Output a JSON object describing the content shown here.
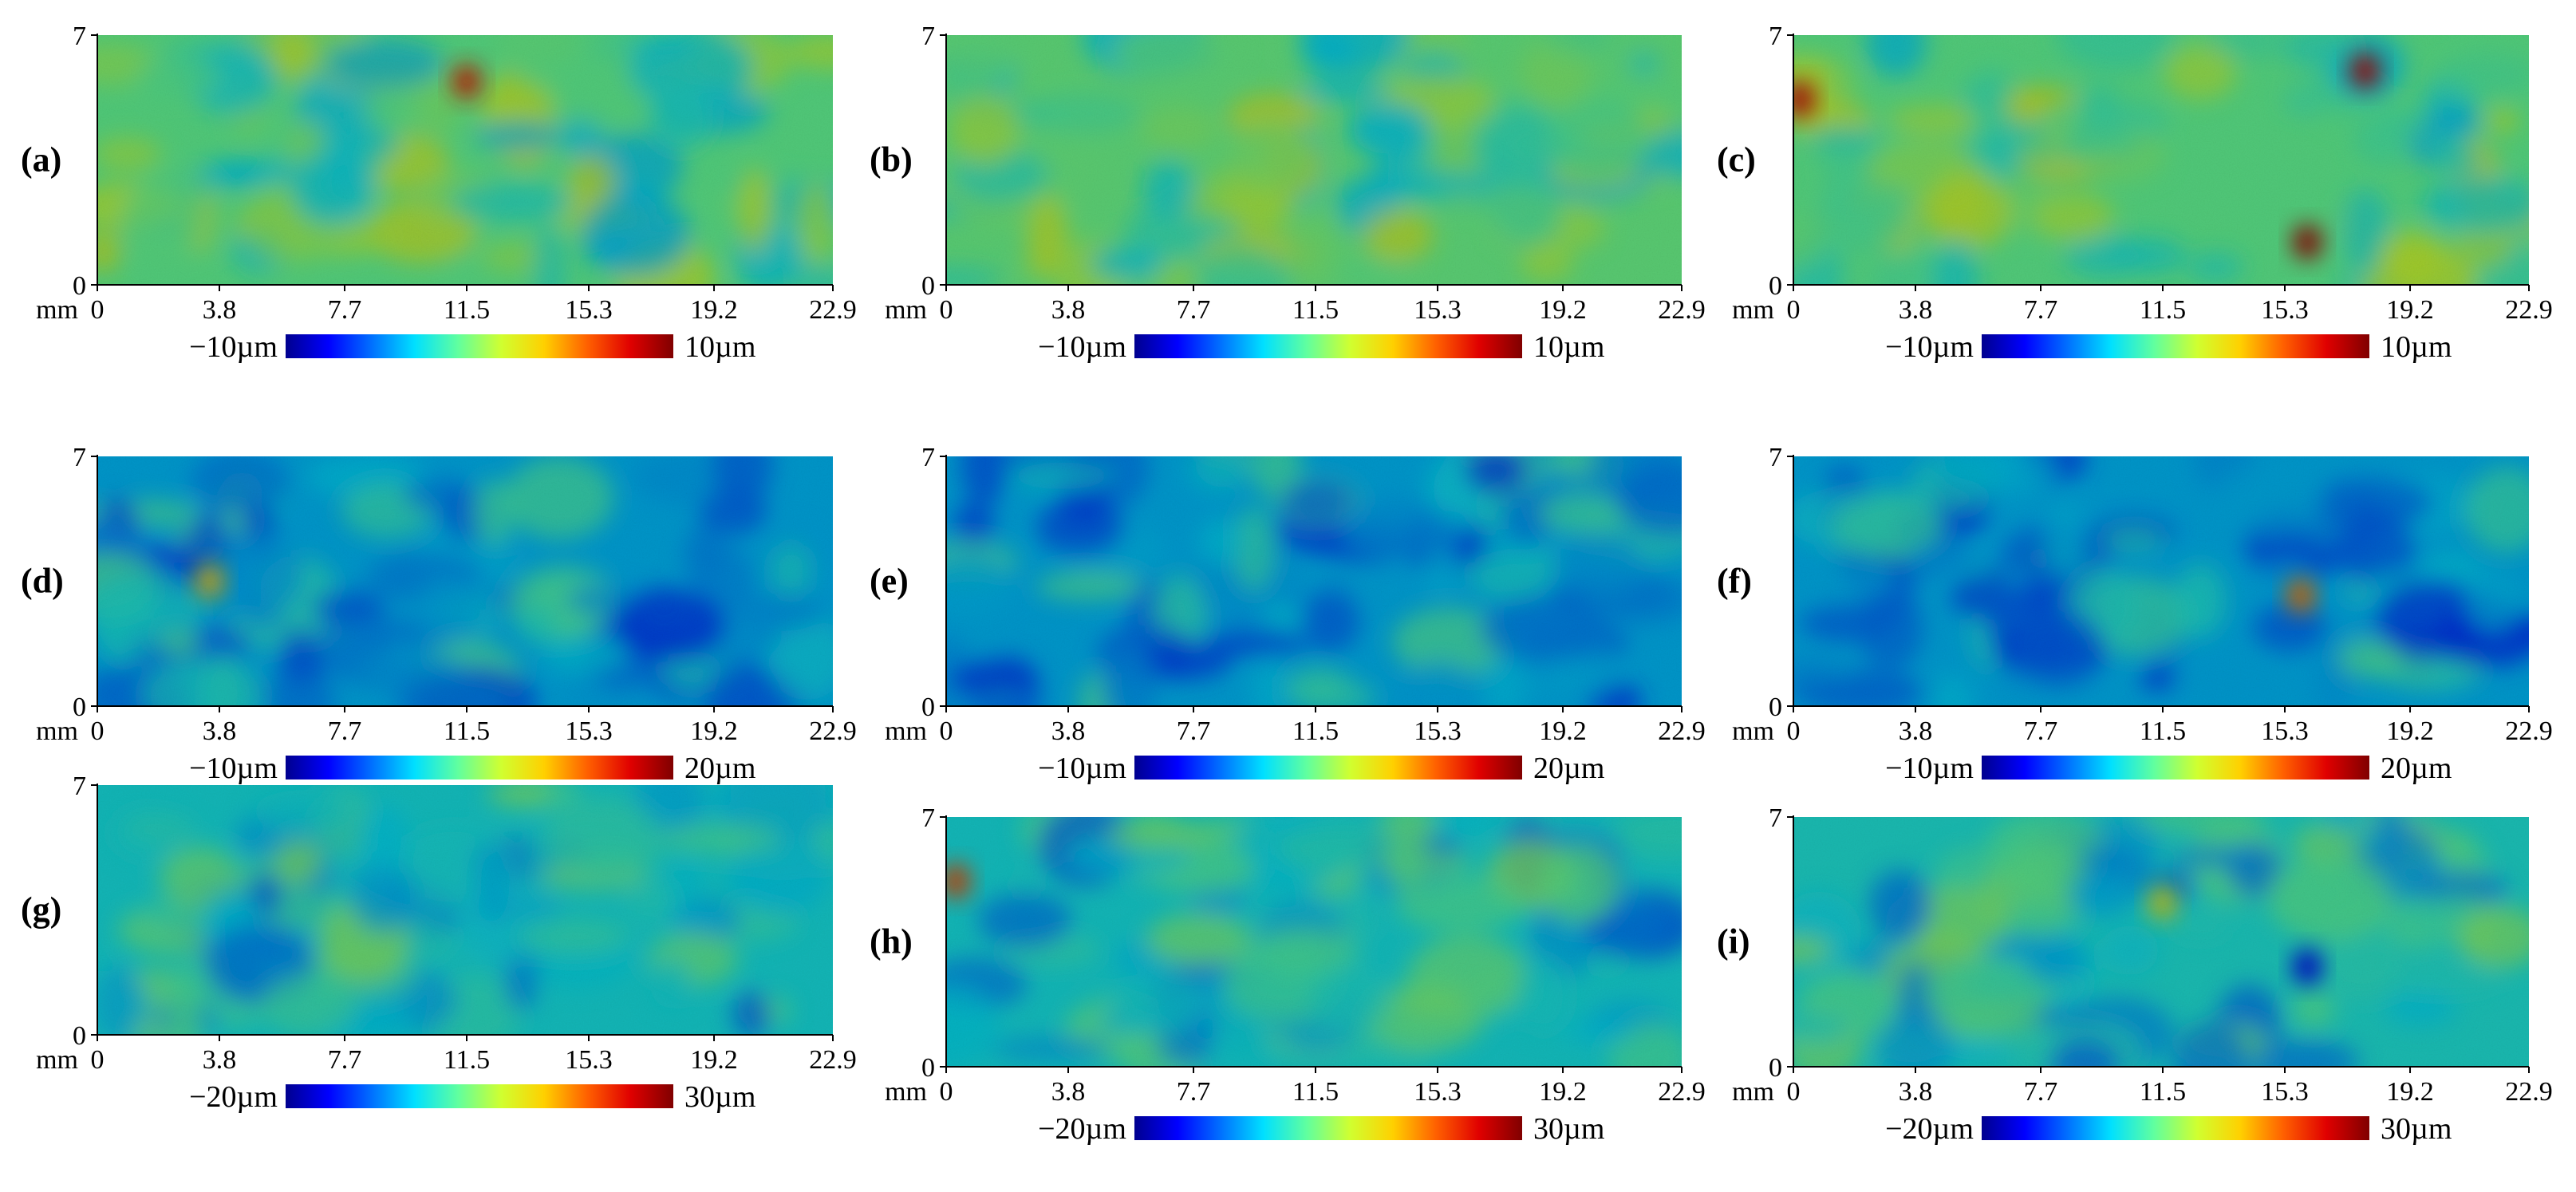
{
  "figure": {
    "description_label": "Surface height maps (a)-(i)"
  },
  "colormap": [
    "#00008f",
    "#0000ff",
    "#0070ff",
    "#00e0ff",
    "#60ff9f",
    "#d0ff30",
    "#ffd000",
    "#ff6000",
    "#e00000",
    "#800000"
  ],
  "chart_data": [
    {
      "type": "heatmap",
      "panel": "(a)",
      "xlabel": "mm",
      "x_ticks": [
        "0",
        "3.8",
        "7.7",
        "11.5",
        "15.3",
        "19.2",
        "22.9"
      ],
      "y_ticks": [
        "0",
        "7"
      ],
      "xlim": [
        0,
        22.9
      ],
      "ylim": [
        0,
        7
      ],
      "colorbar": {
        "min_label": "−10µm",
        "max_label": "10µm",
        "min": -10,
        "max": 10
      },
      "mean_level": 0.45,
      "spots": [
        {
          "x": 11.5,
          "y": 5.7,
          "level": 0.85
        }
      ]
    },
    {
      "type": "heatmap",
      "panel": "(b)",
      "xlabel": "mm",
      "x_ticks": [
        "0",
        "3.8",
        "7.7",
        "11.5",
        "15.3",
        "19.2",
        "22.9"
      ],
      "y_ticks": [
        "0",
        "7"
      ],
      "xlim": [
        0,
        22.9
      ],
      "ylim": [
        0,
        7
      ],
      "colorbar": {
        "min_label": "−10µm",
        "max_label": "10µm",
        "min": -10,
        "max": 10
      },
      "mean_level": 0.46,
      "spots": []
    },
    {
      "type": "heatmap",
      "panel": "(c)",
      "xlabel": "mm",
      "x_ticks": [
        "0",
        "3.8",
        "7.7",
        "11.5",
        "15.3",
        "19.2",
        "22.9"
      ],
      "y_ticks": [
        "0",
        "7"
      ],
      "xlim": [
        0,
        22.9
      ],
      "ylim": [
        0,
        7
      ],
      "colorbar": {
        "min_label": "−10µm",
        "max_label": "10µm",
        "min": -10,
        "max": 10
      },
      "mean_level": 0.45,
      "spots": [
        {
          "x": 17.8,
          "y": 6.0,
          "level": 0.92
        },
        {
          "x": 16.0,
          "y": 1.2,
          "level": 0.95
        },
        {
          "x": 0.2,
          "y": 5.2,
          "level": 0.9
        }
      ]
    },
    {
      "type": "heatmap",
      "panel": "(d)",
      "xlabel": "mm",
      "x_ticks": [
        "0",
        "3.8",
        "7.7",
        "11.5",
        "15.3",
        "19.2",
        "22.9"
      ],
      "y_ticks": [
        "0",
        "7"
      ],
      "xlim": [
        0,
        22.9
      ],
      "ylim": [
        0,
        7
      ],
      "colorbar": {
        "min_label": "−10µm",
        "max_label": "20µm",
        "min": -10,
        "max": 20
      },
      "mean_level": 0.3,
      "spots": [
        {
          "x": 3.5,
          "y": 3.5,
          "level": 0.65
        }
      ]
    },
    {
      "type": "heatmap",
      "panel": "(e)",
      "xlabel": "mm",
      "x_ticks": [
        "0",
        "3.8",
        "7.7",
        "11.5",
        "15.3",
        "19.2",
        "22.9"
      ],
      "y_ticks": [
        "0",
        "7"
      ],
      "xlim": [
        0,
        22.9
      ],
      "ylim": [
        0,
        7
      ],
      "colorbar": {
        "min_label": "−10µm",
        "max_label": "20µm",
        "min": -10,
        "max": 20
      },
      "mean_level": 0.3,
      "spots": []
    },
    {
      "type": "heatmap",
      "panel": "(f)",
      "xlabel": "mm",
      "x_ticks": [
        "0",
        "3.8",
        "7.7",
        "11.5",
        "15.3",
        "19.2",
        "22.9"
      ],
      "y_ticks": [
        "0",
        "7"
      ],
      "xlim": [
        0,
        22.9
      ],
      "ylim": [
        0,
        7
      ],
      "colorbar": {
        "min_label": "−10µm",
        "max_label": "20µm",
        "min": -10,
        "max": 20
      },
      "mean_level": 0.3,
      "spots": [
        {
          "x": 15.8,
          "y": 3.1,
          "level": 0.75
        }
      ]
    },
    {
      "type": "heatmap",
      "panel": "(g)",
      "xlabel": "mm",
      "x_ticks": [
        "0",
        "3.8",
        "7.7",
        "11.5",
        "15.3",
        "19.2",
        "22.9"
      ],
      "y_ticks": [
        "0",
        "7"
      ],
      "xlim": [
        0,
        22.9
      ],
      "ylim": [
        0,
        7
      ],
      "colorbar": {
        "min_label": "−20µm",
        "max_label": "30µm",
        "min": -20,
        "max": 30
      },
      "mean_level": 0.36,
      "spots": []
    },
    {
      "type": "heatmap",
      "panel": "(h)",
      "xlabel": "mm",
      "x_ticks": [
        "0",
        "3.8",
        "7.7",
        "11.5",
        "15.3",
        "19.2",
        "22.9"
      ],
      "y_ticks": [
        "0",
        "7"
      ],
      "xlim": [
        0,
        22.9
      ],
      "ylim": [
        0,
        7
      ],
      "colorbar": {
        "min_label": "−20µm",
        "max_label": "30µm",
        "min": -20,
        "max": 30
      },
      "mean_level": 0.36,
      "spots": [
        {
          "x": 0.3,
          "y": 5.2,
          "level": 0.8
        }
      ]
    },
    {
      "type": "heatmap",
      "panel": "(i)",
      "xlabel": "mm",
      "x_ticks": [
        "0",
        "3.8",
        "7.7",
        "11.5",
        "15.3",
        "19.2",
        "22.9"
      ],
      "y_ticks": [
        "0",
        "7"
      ],
      "xlim": [
        0,
        22.9
      ],
      "ylim": [
        0,
        7
      ],
      "colorbar": {
        "min_label": "−20µm",
        "max_label": "30µm",
        "min": -20,
        "max": 30
      },
      "mean_level": 0.37,
      "spots": [
        {
          "x": 11.5,
          "y": 4.6,
          "level": 0.6
        },
        {
          "x": 16.0,
          "y": 2.8,
          "level": 0.1
        }
      ]
    }
  ]
}
